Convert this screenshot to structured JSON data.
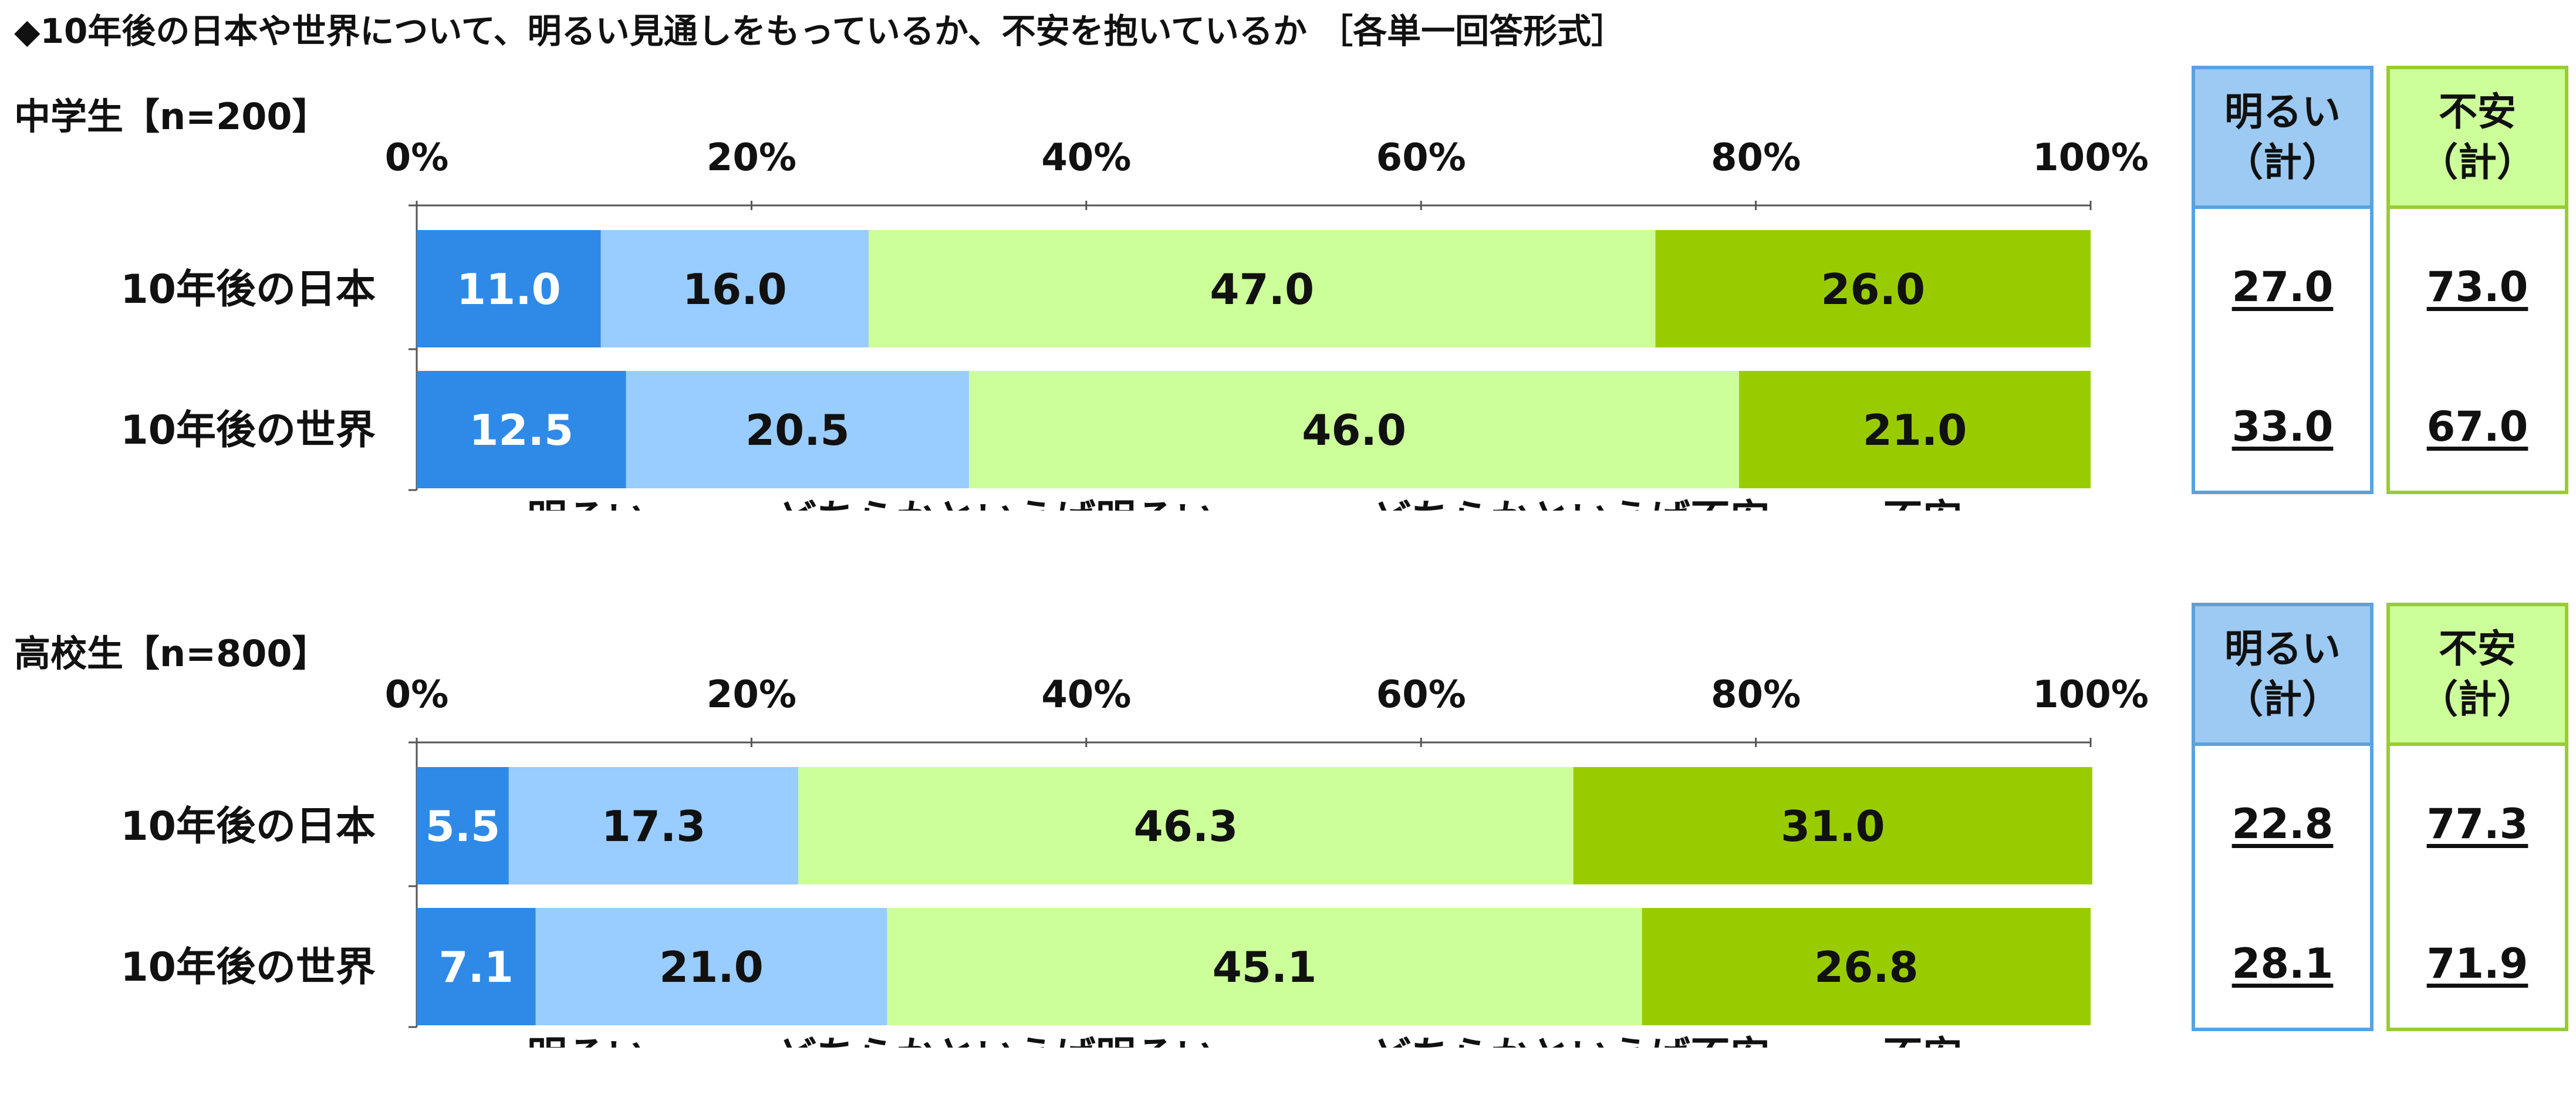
{
  "title": "◆10年後の日本や世界について、明るい見通しをもっているか、不安を抱いているか ［各単一回答形式］",
  "colors": {
    "akarui": "#2e8ae6",
    "dochira_akarui": "#99ccff",
    "dochira_fuan": "#ccff99",
    "fuan": "#99cc00"
  },
  "legend": [
    "明るい",
    "どちらかといえば明るい",
    "どちらかといえば不安",
    "不安"
  ],
  "summary_headers": {
    "akarui": {
      "line1": "明るい",
      "line2": "（計）"
    },
    "fuan": {
      "line1": "不安",
      "line2": "（計）"
    }
  },
  "chart_data": [
    {
      "type": "bar",
      "orientation": "horizontal",
      "stacked": true,
      "title": "中学生【n=200】",
      "categories": [
        "10年後の日本",
        "10年後の世界"
      ],
      "xlim": [
        0,
        100
      ],
      "xticks": [
        "0%",
        "20%",
        "40%",
        "60%",
        "80%",
        "100%"
      ],
      "legend_position": "bottom",
      "series": [
        {
          "name": "明るい",
          "values": [
            11.0,
            12.5
          ]
        },
        {
          "name": "どちらかといえば明るい",
          "values": [
            16.0,
            20.5
          ]
        },
        {
          "name": "どちらかといえば不安",
          "values": [
            47.0,
            46.0
          ]
        },
        {
          "name": "不安",
          "values": [
            26.0,
            21.0
          ]
        }
      ],
      "totals": {
        "akarui_kei": [
          "27.0",
          "33.0"
        ],
        "fuan_kei": [
          "73.0",
          "67.0"
        ]
      }
    },
    {
      "type": "bar",
      "orientation": "horizontal",
      "stacked": true,
      "title": "高校生【n=800】",
      "categories": [
        "10年後の日本",
        "10年後の世界"
      ],
      "xlim": [
        0,
        100
      ],
      "xticks": [
        "0%",
        "20%",
        "40%",
        "60%",
        "80%",
        "100%"
      ],
      "legend_position": "bottom",
      "series": [
        {
          "name": "明るい",
          "values": [
            5.5,
            7.1
          ]
        },
        {
          "name": "どちらかといえば明るい",
          "values": [
            17.3,
            21.0
          ]
        },
        {
          "name": "どちらかといえば不安",
          "values": [
            46.3,
            45.1
          ]
        },
        {
          "name": "不安",
          "values": [
            31.0,
            26.8
          ]
        }
      ],
      "totals": {
        "akarui_kei": [
          "22.8",
          "28.1"
        ],
        "fuan_kei": [
          "77.3",
          "71.9"
        ]
      }
    }
  ]
}
